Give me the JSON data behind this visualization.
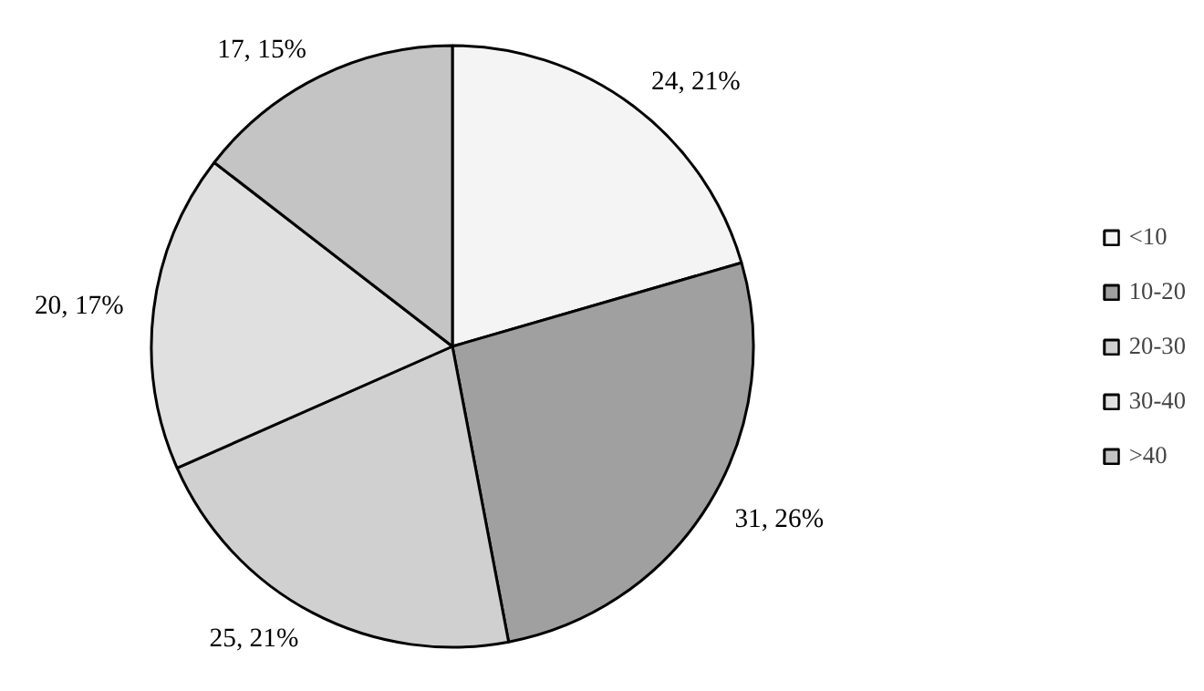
{
  "chart_data": {
    "type": "pie",
    "categories": [
      "<10",
      "10-20",
      "20-30",
      "30-40",
      ">40"
    ],
    "values": [
      24,
      31,
      25,
      20,
      17
    ],
    "value_labels": [
      "24, 21%",
      "31, 26%",
      "25, 21%",
      "20, 17%",
      "17, 15%"
    ],
    "colors": [
      "#f4f4f4",
      "#a0a0a0",
      "#d0d0d0",
      "#e0e0e0",
      "#c4c4c4"
    ],
    "legend": "right"
  }
}
